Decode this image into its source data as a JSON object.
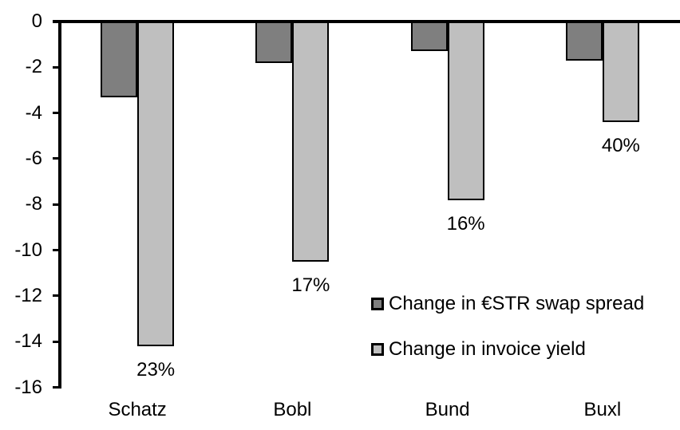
{
  "chart_data": {
    "type": "bar",
    "title": "",
    "xlabel": "",
    "ylabel": "",
    "categories": [
      "Schatz",
      "Bobl",
      "Bund",
      "Buxl"
    ],
    "series": [
      {
        "key": "estr-swap-spread",
        "name": "Change in €STR swap spread",
        "color": "#7f7f7f",
        "values": [
          -3.3,
          -1.8,
          -1.3,
          -1.7
        ]
      },
      {
        "key": "invoice-yield",
        "name": "Change in invoice yield",
        "color": "#bfbfbf",
        "values": [
          -14.2,
          -10.5,
          -7.8,
          -4.4
        ],
        "data_labels": [
          "23%",
          "17%",
          "16%",
          "40%"
        ]
      }
    ],
    "ylim": [
      -16,
      0
    ],
    "yticks": [
      0,
      -2,
      -4,
      -6,
      -8,
      -10,
      -12,
      -14,
      -16
    ],
    "grid": false,
    "legend_position": "inside-right",
    "bar_border_color": "#000000",
    "axis_color": "#000000",
    "text_color": "#000000",
    "background": "#ffffff"
  }
}
